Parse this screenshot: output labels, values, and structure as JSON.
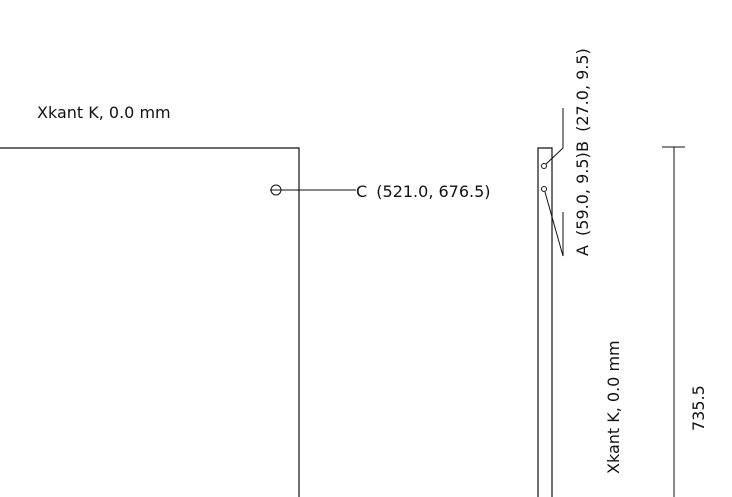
{
  "front_view": {
    "edge_label": "Xkant K, 0.0 mm",
    "point_c": {
      "name": "C",
      "coords": "(521.0, 676.5)"
    }
  },
  "side_view": {
    "edge_label": "Xkant K, 0.0 mm",
    "point_a": {
      "name": "A",
      "coords": "(59.0, 9.5)"
    },
    "point_b": {
      "name": "B",
      "coords": "(27.0, 9.5)"
    },
    "height_dimension": "735.5"
  },
  "colors": {
    "line": "#111111",
    "background": "#ffffff"
  }
}
